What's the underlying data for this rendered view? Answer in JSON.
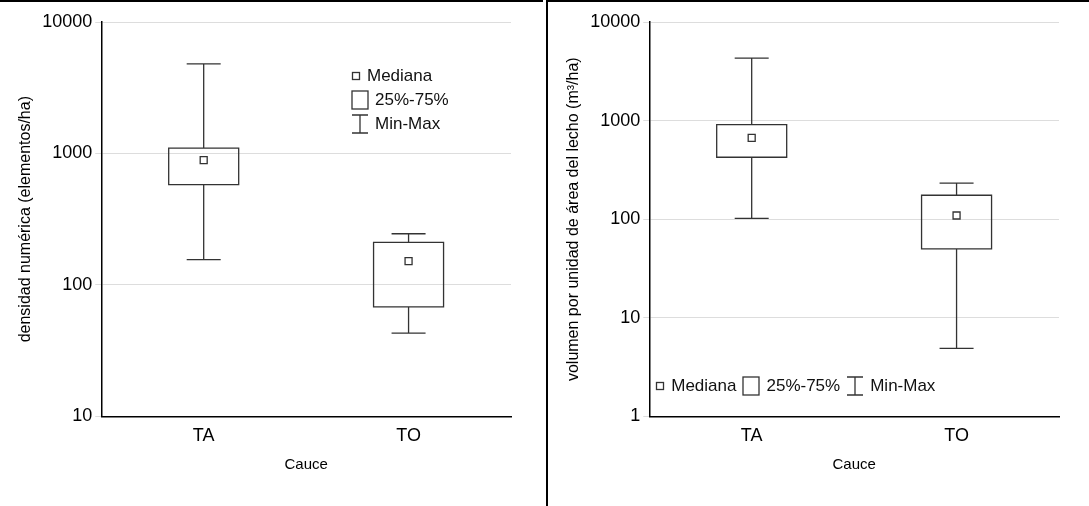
{
  "chart_data": [
    {
      "type": "box",
      "categories": [
        "TA",
        "TO"
      ],
      "xlabel": "Cauce",
      "ylabel": "densidad numérica (elementos/ha)",
      "log": "y",
      "ylim": [
        10,
        10000
      ],
      "yticks": [
        10,
        100,
        1000,
        10000
      ],
      "grid": "y",
      "color": "#333333",
      "boxes": [
        {
          "low": 156,
          "q1": 580,
          "median": 890,
          "q3": 1100,
          "high": 4800
        },
        {
          "low": 43,
          "q1": 68,
          "median": 152,
          "q3": 211,
          "high": 245
        }
      ],
      "annotations": [
        "Mediana",
        "25%-75%",
        "Min-Max"
      ]
    },
    {
      "type": "box",
      "categories": [
        "TA",
        "TO"
      ],
      "xlabel": "Cauce",
      "ylabel": "volumen por unidad de área del lecho (m³/ha)",
      "log": "y",
      "ylim": [
        1,
        10000
      ],
      "yticks": [
        1,
        10,
        100,
        1000,
        10000
      ],
      "grid": "y",
      "color": "#333333",
      "boxes": [
        {
          "low": 102,
          "q1": 425,
          "median": 667,
          "q3": 910,
          "high": 4300
        },
        {
          "low": 4.9,
          "q1": 50,
          "median": 109,
          "q3": 175,
          "high": 232
        }
      ],
      "annotations": [
        "Mediana",
        "25%-75%",
        "Min-Max"
      ]
    }
  ]
}
